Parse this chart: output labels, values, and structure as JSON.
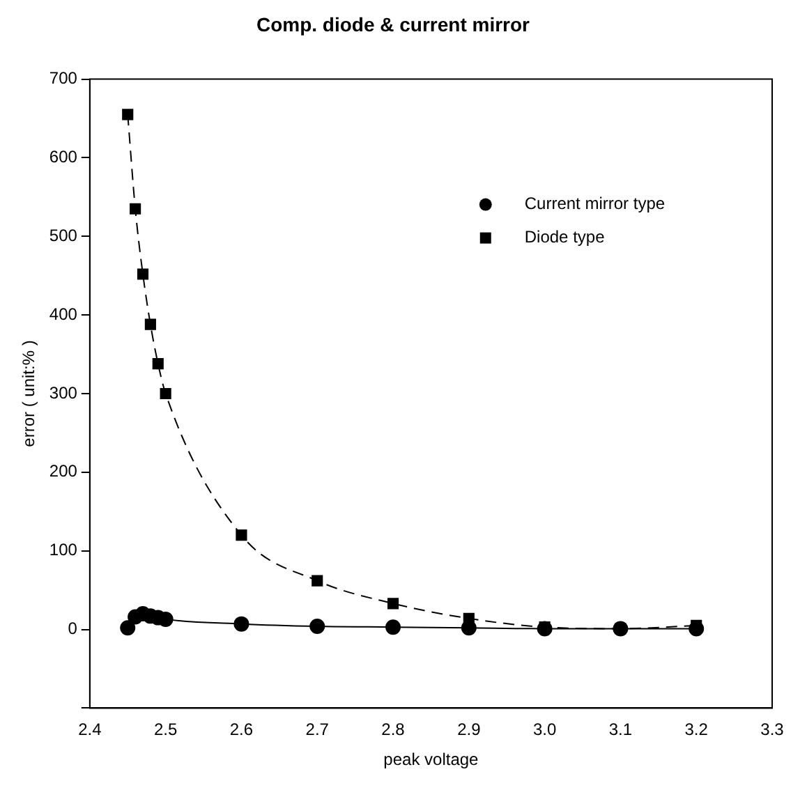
{
  "chart_data": {
    "type": "line",
    "title": "Comp. diode & current mirror",
    "xlabel": "peak voltage",
    "ylabel": "error ( unit:% )",
    "xlim": [
      2.4,
      3.3
    ],
    "xticks": [
      2.4,
      2.5,
      2.6,
      2.7,
      2.8,
      2.9,
      {
        "value": 3,
        "label": "3.0"
      },
      3.1,
      3.2,
      3.3
    ],
    "ylim": [
      -100,
      700
    ],
    "yticks": [
      {
        "value": -100,
        "label": null
      },
      0,
      100,
      200,
      300,
      400,
      500,
      600,
      700
    ],
    "grid": false,
    "legend": "top right",
    "x": [
      2.45,
      2.46,
      2.47,
      2.48,
      2.49,
      2.5,
      2.6,
      2.7,
      2.8,
      2.9,
      3.0,
      3.1,
      3.2
    ],
    "series": [
      {
        "name": "Current mirror type",
        "color": "#000000",
        "marker": "circle",
        "line_style": "solid",
        "values": [
          2,
          16,
          20,
          17,
          15,
          13,
          7,
          4,
          3,
          2,
          1,
          1,
          1
        ]
      },
      {
        "name": "Diode type",
        "color": "#000000",
        "marker": "square",
        "line_style": "dashed",
        "values": [
          655,
          535,
          452,
          388,
          338,
          300,
          120,
          62,
          33,
          14,
          3,
          1,
          5
        ]
      }
    ]
  }
}
